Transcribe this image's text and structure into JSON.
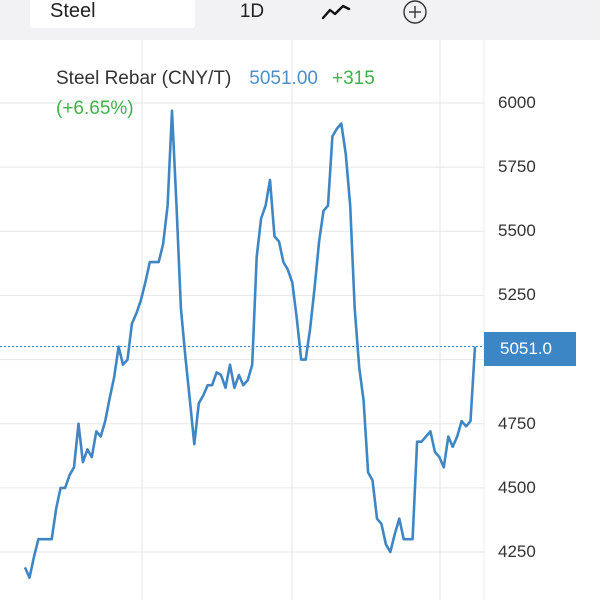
{
  "toolbar": {
    "symbol": "Steel",
    "interval": "1D",
    "chart_type_icon": "line-chart-icon",
    "compare_icon": "plus-circle-icon"
  },
  "legend": {
    "name": "Steel Rebar (CNY/T)",
    "price": "5051.00",
    "change": "+315",
    "change_pct": "(+6.65%)"
  },
  "price_tag": "5051.0",
  "colors": {
    "line": "#3f86c4",
    "up": "#3db34a",
    "price_tag_bg": "#3d86c6",
    "grid": "#e6e6e6"
  },
  "chart_data": {
    "type": "line",
    "title": "Steel Rebar (CNY/T)",
    "ylim": [
      4150,
      6100
    ],
    "y_ticks": [
      "6000",
      "5750",
      "5500",
      "5250",
      "5000",
      "4750",
      "4500",
      "4250"
    ],
    "current_value": 5051,
    "grid": true,
    "series": [
      {
        "name": "Steel Rebar (CNY/T)",
        "values": [
          4190,
          4150,
          4230,
          4300,
          4300,
          4300,
          4300,
          4420,
          4500,
          4500,
          4550,
          4580,
          4750,
          4600,
          4650,
          4620,
          4720,
          4700,
          4760,
          4850,
          4930,
          5050,
          4980,
          5000,
          5140,
          5180,
          5230,
          5300,
          5380,
          5380,
          5380,
          5450,
          5600,
          5970,
          5600,
          5200,
          5010,
          4840,
          4670,
          4830,
          4860,
          4900,
          4900,
          4950,
          4940,
          4890,
          4980,
          4890,
          4940,
          4900,
          4920,
          4980,
          5400,
          5550,
          5600,
          5700,
          5480,
          5460,
          5380,
          5350,
          5300,
          5160,
          5000,
          5000,
          5120,
          5280,
          5460,
          5580,
          5600,
          5870,
          5900,
          5920,
          5800,
          5600,
          5200,
          4970,
          4840,
          4560,
          4530,
          4380,
          4360,
          4280,
          4250,
          4320,
          4380,
          4300,
          4300,
          4300,
          4680,
          4680,
          4700,
          4720,
          4640,
          4620,
          4580,
          4700,
          4660,
          4700,
          4760,
          4740,
          4760,
          5051
        ]
      }
    ]
  }
}
